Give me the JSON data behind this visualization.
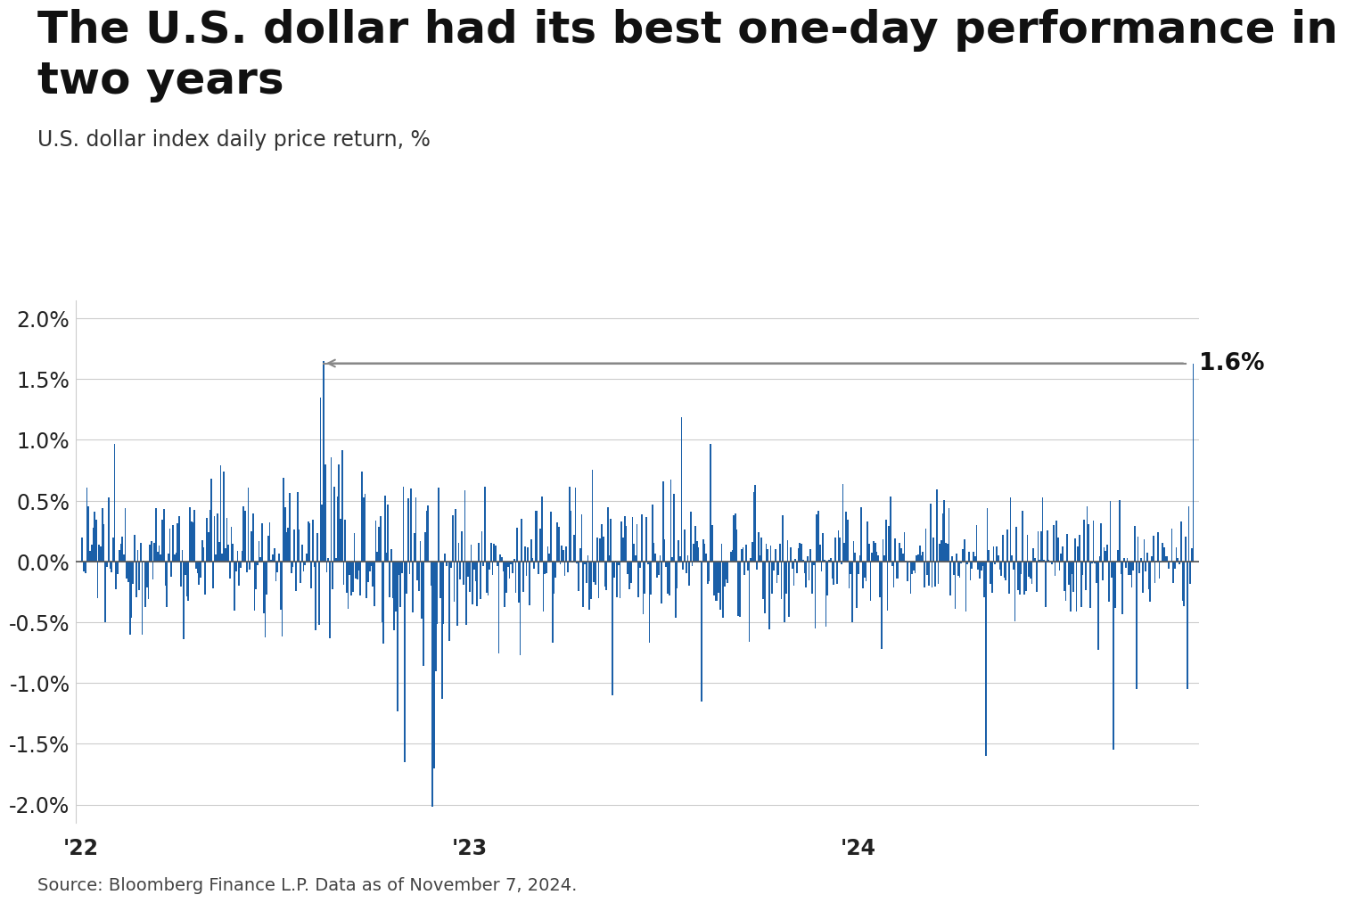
{
  "title_line1": "The U.S. dollar had its best one-day performance in",
  "title_line2": "two years",
  "subtitle": "U.S. dollar index daily price return, %",
  "source": "Source: Bloomberg Finance L.P. Data as of November 7, 2024.",
  "bar_color": "#1a5fa8",
  "annotation_value": "1.6%",
  "ylim": [
    -2.15,
    2.15
  ],
  "yticks": [
    -2.0,
    -1.5,
    -1.0,
    -0.5,
    0.0,
    0.5,
    1.0,
    1.5,
    2.0
  ],
  "background_color": "#ffffff",
  "title_fontsize": 36,
  "subtitle_fontsize": 17,
  "source_fontsize": 14,
  "tick_fontsize": 17,
  "annotation_fontsize": 19
}
